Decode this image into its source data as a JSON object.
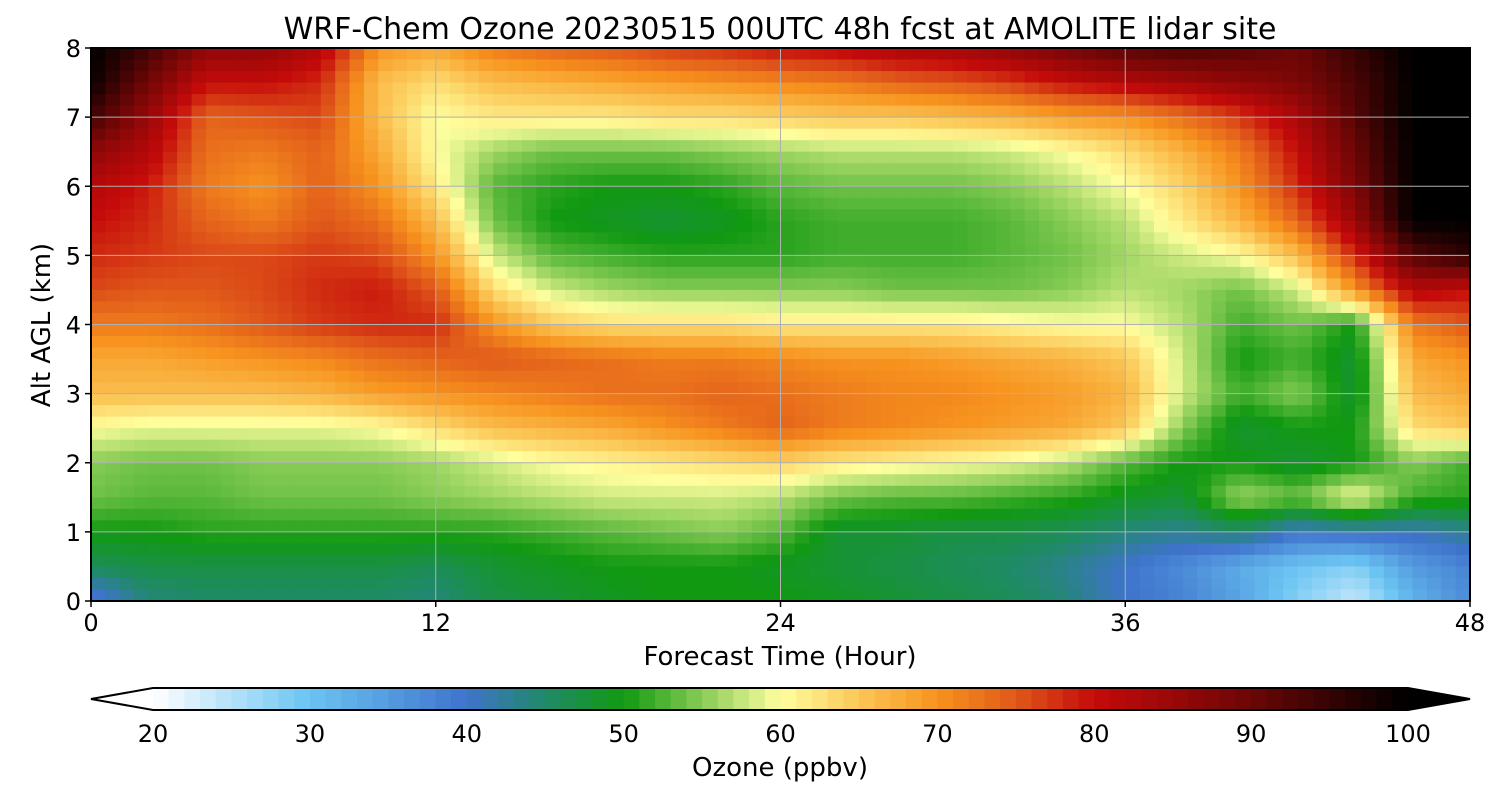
{
  "chart_data": {
    "type": "heatmap",
    "title": "WRF-Chem Ozone  20230515 00UTC 48h fcst at AMOLITE lidar site",
    "xlabel": "Forecast Time (Hour)",
    "ylabel": "Alt AGL (km)",
    "xlim": [
      0,
      48
    ],
    "ylim": [
      0,
      8
    ],
    "x_ticks": [
      0,
      12,
      24,
      36,
      48
    ],
    "y_ticks": [
      0,
      1,
      2,
      3,
      4,
      5,
      6,
      7,
      8
    ],
    "grid": true,
    "x": [
      0,
      2,
      4,
      6,
      8,
      10,
      12,
      14,
      16,
      18,
      20,
      22,
      24,
      26,
      28,
      30,
      32,
      34,
      36,
      38,
      40,
      42,
      44,
      46,
      48
    ],
    "y": [
      0,
      0.5,
      1,
      1.5,
      2,
      2.5,
      3,
      3.5,
      4,
      4.5,
      5,
      5.5,
      6,
      6.5,
      7,
      7.5,
      8
    ],
    "z": [
      [
        38,
        44,
        45,
        45,
        45,
        45,
        44,
        47,
        48,
        49,
        50,
        50,
        50,
        49,
        48,
        47,
        46,
        44,
        40,
        38,
        34,
        28,
        24,
        32,
        37
      ],
      [
        46,
        47,
        47,
        47,
        47,
        47,
        46,
        48,
        49,
        50,
        50,
        50,
        49,
        48,
        47,
        46,
        45,
        43,
        40,
        37,
        33,
        30,
        28,
        35,
        38
      ],
      [
        50,
        50,
        51,
        51,
        51,
        51,
        51,
        51,
        52,
        53,
        54,
        55,
        53,
        48,
        48,
        47,
        47,
        46,
        44,
        43,
        45,
        40,
        41,
        41,
        43
      ],
      [
        54,
        53,
        53,
        54,
        54,
        54,
        55,
        56,
        57,
        58,
        58,
        58,
        57,
        54,
        53,
        53,
        52,
        51,
        49,
        48,
        56,
        54,
        60,
        52,
        51
      ],
      [
        55,
        54,
        54,
        55,
        55,
        55,
        56,
        58,
        60,
        61,
        62,
        63,
        64,
        62,
        61,
        60,
        59,
        57,
        53,
        50,
        50,
        48,
        50,
        55,
        52
      ],
      [
        60,
        59,
        59,
        59,
        59,
        60,
        63,
        66,
        67,
        68,
        70,
        72,
        74,
        72,
        71,
        70,
        69,
        68,
        65,
        55,
        48,
        50,
        50,
        63,
        65
      ],
      [
        66,
        66,
        66,
        66,
        67,
        69,
        70,
        71,
        72,
        73,
        73,
        74,
        73,
        72,
        71,
        71,
        70,
        69,
        67,
        58,
        52,
        55,
        48,
        66,
        68
      ],
      [
        68,
        68,
        69,
        70,
        71,
        73,
        74,
        75,
        74,
        73,
        72,
        72,
        71,
        70,
        70,
        69,
        68,
        67,
        65,
        58,
        50,
        52,
        48,
        68,
        70
      ],
      [
        72,
        72,
        73,
        75,
        77,
        78,
        78,
        70,
        65,
        63,
        63,
        63,
        62,
        62,
        62,
        62,
        61,
        60,
        60,
        57,
        52,
        54,
        50,
        72,
        75
      ],
      [
        76,
        75,
        75,
        76,
        78,
        79,
        75,
        63,
        58,
        56,
        55,
        55,
        55,
        55,
        54,
        54,
        54,
        55,
        57,
        56,
        54,
        58,
        70,
        82,
        80
      ],
      [
        78,
        77,
        76,
        76,
        77,
        76,
        70,
        58,
        53,
        52,
        51,
        51,
        51,
        52,
        52,
        52,
        53,
        54,
        56,
        58,
        60,
        66,
        78,
        92,
        96
      ],
      [
        80,
        78,
        74,
        72,
        75,
        73,
        66,
        54,
        50,
        49,
        48,
        49,
        51,
        52,
        52,
        52,
        53,
        55,
        57,
        62,
        67,
        74,
        85,
        100,
        100
      ],
      [
        82,
        79,
        72,
        70,
        74,
        70,
        62,
        53,
        51,
        50,
        50,
        51,
        53,
        54,
        54,
        54,
        55,
        57,
        60,
        64,
        70,
        78,
        88,
        100,
        100
      ],
      [
        86,
        82,
        73,
        72,
        74,
        68,
        60,
        56,
        54,
        54,
        54,
        55,
        56,
        57,
        57,
        57,
        58,
        60,
        63,
        67,
        72,
        80,
        90,
        100,
        100
      ],
      [
        94,
        85,
        74,
        75,
        76,
        66,
        60,
        62,
        62,
        62,
        63,
        63,
        64,
        65,
        65,
        66,
        67,
        69,
        70,
        73,
        77,
        83,
        92,
        100,
        100
      ],
      [
        99,
        89,
        80,
        80,
        78,
        66,
        63,
        66,
        67,
        68,
        69,
        70,
        71,
        72,
        74,
        75,
        77,
        80,
        82,
        84,
        86,
        88,
        93,
        100,
        100
      ],
      [
        100,
        94,
        86,
        86,
        82,
        70,
        68,
        72,
        74,
        75,
        77,
        78,
        80,
        81,
        83,
        84,
        86,
        89,
        92,
        93,
        92,
        90,
        95,
        100,
        100
      ]
    ],
    "colorbar": {
      "label": "Ozone  (ppbv)",
      "min": 20,
      "max": 100,
      "ticks": [
        20,
        30,
        40,
        50,
        60,
        70,
        80,
        90,
        100
      ],
      "extend": "both",
      "color_stops": [
        [
          20,
          "#ffffff"
        ],
        [
          30,
          "#6ac4f2"
        ],
        [
          40,
          "#3f73cc"
        ],
        [
          45,
          "#208a68"
        ],
        [
          50,
          "#119911"
        ],
        [
          55,
          "#88cc55"
        ],
        [
          60,
          "#ffff9e"
        ],
        [
          65,
          "#fbc757"
        ],
        [
          70,
          "#f7931e"
        ],
        [
          75,
          "#e0581a"
        ],
        [
          80,
          "#c50a0a"
        ],
        [
          90,
          "#6b0606"
        ],
        [
          100,
          "#000000"
        ]
      ]
    }
  }
}
